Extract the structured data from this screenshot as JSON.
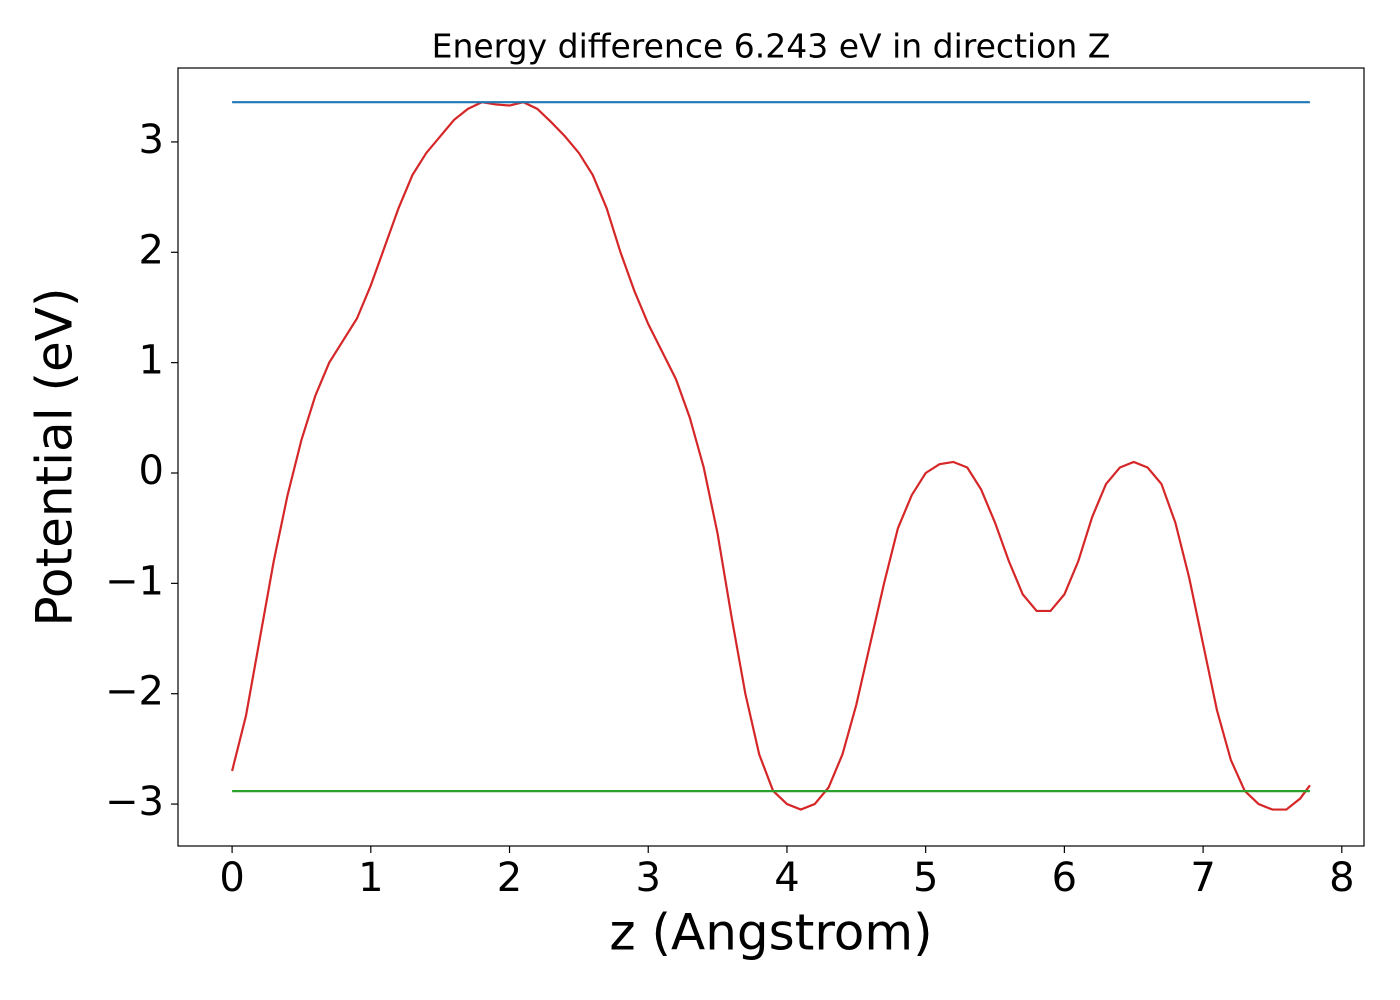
{
  "chart_data": {
    "type": "line",
    "title": "Energy difference 6.243 eV in direction Z",
    "xlabel": "z (Angstrom)",
    "ylabel": "Potential (eV)",
    "xlim": [
      -0.39,
      8.16
    ],
    "ylim": [
      -3.38,
      3.67
    ],
    "xticks": [
      0,
      1,
      2,
      3,
      4,
      5,
      6,
      7,
      8
    ],
    "yticks": [
      {
        "value": -3,
        "label": "−3"
      },
      {
        "value": -2,
        "label": "−2"
      },
      {
        "value": -1,
        "label": "−1"
      },
      0,
      1,
      2,
      3
    ],
    "grid": false,
    "series": [
      {
        "color": "#d62728",
        "x": [
          0,
          0.1,
          0.2,
          0.3,
          0.4,
          0.5,
          0.6,
          0.7,
          0.8,
          0.9,
          1.0,
          1.1,
          1.2,
          1.3,
          1.4,
          1.5,
          1.6,
          1.7,
          1.8,
          1.9,
          2.0,
          2.1,
          2.2,
          2.3,
          2.4,
          2.5,
          2.6,
          2.7,
          2.8,
          2.9,
          3.0,
          3.1,
          3.2,
          3.3,
          3.4,
          3.5,
          3.6,
          3.7,
          3.8,
          3.9,
          4.0,
          4.1,
          4.2,
          4.3,
          4.4,
          4.5,
          4.6,
          4.7,
          4.8,
          4.9,
          5.0,
          5.1,
          5.2,
          5.3,
          5.4,
          5.5,
          5.6,
          5.7,
          5.8,
          5.9,
          6.0,
          6.1,
          6.2,
          6.3,
          6.4,
          6.5,
          6.6,
          6.7,
          6.8,
          6.9,
          7.0,
          7.1,
          7.2,
          7.3,
          7.4,
          7.5,
          7.6,
          7.7,
          7.77
        ],
        "values": [
          -2.7,
          -2.2,
          -1.5,
          -0.8,
          -0.2,
          0.3,
          0.7,
          1.0,
          1.2,
          1.4,
          1.7,
          2.05,
          2.4,
          2.7,
          2.9,
          3.05,
          3.2,
          3.3,
          3.36,
          3.34,
          3.33,
          3.36,
          3.3,
          3.18,
          3.05,
          2.9,
          2.7,
          2.4,
          2.0,
          1.65,
          1.35,
          1.1,
          0.85,
          0.5,
          0.05,
          -0.55,
          -1.3,
          -2.0,
          -2.55,
          -2.88,
          -3.0,
          -3.05,
          -3.0,
          -2.85,
          -2.55,
          -2.1,
          -1.55,
          -1.0,
          -0.5,
          -0.2,
          0.0,
          0.08,
          0.1,
          0.05,
          -0.15,
          -0.45,
          -0.8,
          -1.1,
          -1.25,
          -1.25,
          -1.1,
          -0.8,
          -0.4,
          -0.1,
          0.05,
          0.1,
          0.05,
          -0.1,
          -0.45,
          -0.95,
          -1.55,
          -2.15,
          -2.6,
          -2.88,
          -3.0,
          -3.05,
          -3.05,
          -2.95,
          -2.83
        ]
      },
      {
        "color": "#1f77b4",
        "x": [
          0,
          7.77
        ],
        "values": [
          3.36,
          3.36
        ]
      },
      {
        "color": "#2ca02c",
        "x": [
          0,
          7.77
        ],
        "values": [
          -2.883,
          -2.883
        ]
      }
    ]
  }
}
